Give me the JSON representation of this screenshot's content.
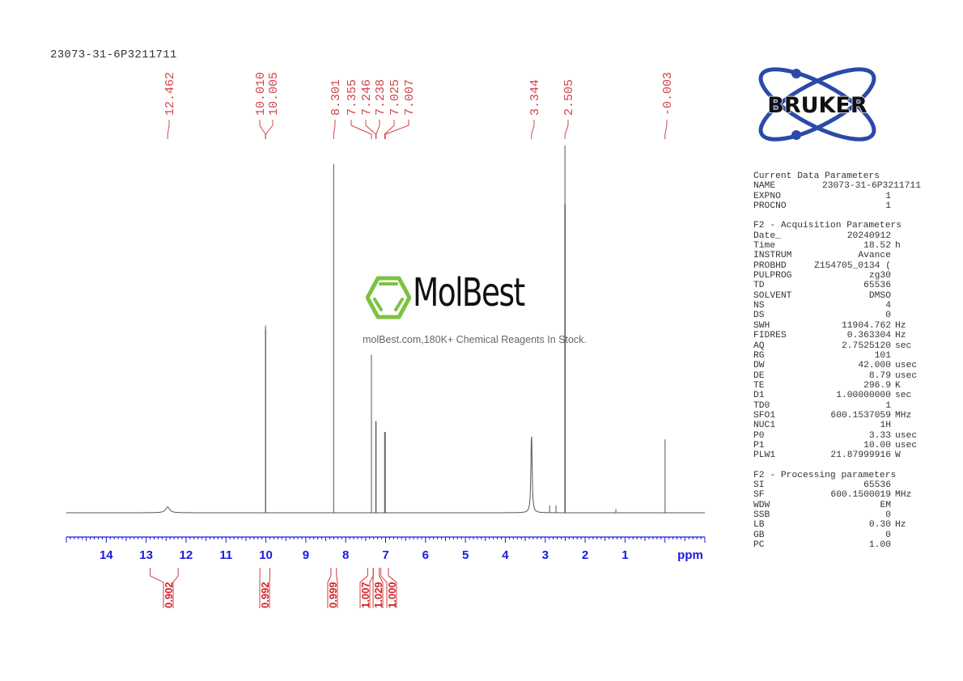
{
  "header": {
    "sample_name": "23073-31-6P3211711"
  },
  "logos": {
    "bruker": "BRUKER",
    "molbest": "MolBest",
    "molbest_tagline": "molBest.com,180K+ Chemical Reagents In Stock.",
    "molbest_color": "#7dc242",
    "bruker_color": "#2a4aa8"
  },
  "colors": {
    "peak_labels": "#d0454a",
    "axis": "#1a1adf",
    "spectrum": "#555555",
    "integrals": "#d0252a"
  },
  "chart_data": {
    "type": "line",
    "title": "",
    "xlabel": "ppm",
    "xlim": [
      15,
      -1
    ],
    "reversed_x": true,
    "grid": false,
    "x_ticks": [
      14,
      13,
      12,
      11,
      10,
      9,
      8,
      7,
      6,
      5,
      4,
      3,
      2,
      1
    ],
    "x_tick_labels": [
      "14",
      "13",
      "12",
      "11",
      "10",
      "9",
      "8",
      "7",
      "6",
      "5",
      "4",
      "3",
      "2",
      "1"
    ],
    "peak_labels": [
      "12.462",
      "10.010",
      "10.005",
      "8.301",
      "7.355",
      "7.246",
      "7.238",
      "7.025",
      "7.007",
      "3.344",
      "2.505",
      "-0.003"
    ],
    "peaks": [
      {
        "ppm": 12.462,
        "intensity": 1.6,
        "width": 0.12
      },
      {
        "ppm": 10.01,
        "intensity": 51
      },
      {
        "ppm": 10.005,
        "intensity": 50
      },
      {
        "ppm": 8.301,
        "intensity": 95
      },
      {
        "ppm": 7.355,
        "intensity": 43
      },
      {
        "ppm": 7.246,
        "intensity": 25
      },
      {
        "ppm": 7.238,
        "intensity": 25
      },
      {
        "ppm": 7.025,
        "intensity": 22
      },
      {
        "ppm": 7.007,
        "intensity": 22
      },
      {
        "ppm": 3.344,
        "intensity": 22,
        "width": 0.035
      },
      {
        "ppm": 2.505,
        "intensity": 100
      },
      {
        "ppm": 2.51,
        "intensity": 84
      },
      {
        "ppm": 2.5,
        "intensity": 84
      },
      {
        "ppm": 2.89,
        "intensity": 2
      },
      {
        "ppm": 2.73,
        "intensity": 2
      },
      {
        "ppm": 1.23,
        "intensity": 1
      },
      {
        "ppm": -0.003,
        "intensity": 20
      }
    ],
    "integrals": [
      {
        "from": 12.9,
        "to": 12.2,
        "value": "0.902"
      },
      {
        "from": 10.15,
        "to": 9.9,
        "value": "0.992"
      },
      {
        "from": 8.37,
        "to": 8.23,
        "value": "0.999"
      },
      {
        "from": 7.45,
        "to": 7.31,
        "value": "1.007"
      },
      {
        "from": 7.31,
        "to": 7.16,
        "value": "1.029"
      },
      {
        "from": 7.12,
        "to": 6.93,
        "value": "1.000"
      }
    ]
  },
  "parameters": {
    "current": {
      "heading": "Current Data Parameters",
      "rows": [
        {
          "name": "NAME",
          "value": "23073-31-6P3211711",
          "unit": ""
        },
        {
          "name": "EXPNO",
          "value": "1",
          "unit": ""
        },
        {
          "name": "PROCNO",
          "value": "1",
          "unit": ""
        }
      ]
    },
    "acquisition": {
      "heading": "F2 - Acquisition Parameters",
      "rows": [
        {
          "name": "Date_",
          "value": "20240912",
          "unit": ""
        },
        {
          "name": "Time",
          "value": "18.52",
          "unit": "h"
        },
        {
          "name": "INSTRUM",
          "value": "Avance",
          "unit": ""
        },
        {
          "name": "PROBHD",
          "value": "Z154705_0134 (",
          "unit": ""
        },
        {
          "name": "PULPROG",
          "value": "zg30",
          "unit": ""
        },
        {
          "name": "TD",
          "value": "65536",
          "unit": ""
        },
        {
          "name": "SOLVENT",
          "value": "DMSO",
          "unit": ""
        },
        {
          "name": "NS",
          "value": "4",
          "unit": ""
        },
        {
          "name": "DS",
          "value": "0",
          "unit": ""
        },
        {
          "name": "SWH",
          "value": "11904.762",
          "unit": "Hz"
        },
        {
          "name": "FIDRES",
          "value": "0.363304",
          "unit": "Hz"
        },
        {
          "name": "AQ",
          "value": "2.7525120",
          "unit": "sec"
        },
        {
          "name": "RG",
          "value": "101",
          "unit": ""
        },
        {
          "name": "DW",
          "value": "42.000",
          "unit": "usec"
        },
        {
          "name": "DE",
          "value": "8.79",
          "unit": "usec"
        },
        {
          "name": "TE",
          "value": "296.9",
          "unit": "K"
        },
        {
          "name": "D1",
          "value": "1.00000000",
          "unit": "sec"
        },
        {
          "name": "TD0",
          "value": "1",
          "unit": ""
        },
        {
          "name": "SFO1",
          "value": "600.1537059",
          "unit": "MHz"
        },
        {
          "name": "NUC1",
          "value": "1H",
          "unit": ""
        },
        {
          "name": "P0",
          "value": "3.33",
          "unit": "usec"
        },
        {
          "name": "P1",
          "value": "10.00",
          "unit": "usec"
        },
        {
          "name": "PLW1",
          "value": "21.87999916",
          "unit": "W"
        }
      ]
    },
    "processing": {
      "heading": "F2 - Processing parameters",
      "rows": [
        {
          "name": "SI",
          "value": "65536",
          "unit": ""
        },
        {
          "name": "SF",
          "value": "600.1500019",
          "unit": "MHz"
        },
        {
          "name": "WDW",
          "value": "EM",
          "unit": ""
        },
        {
          "name": "SSB",
          "value": "0",
          "unit": ""
        },
        {
          "name": "LB",
          "value": "0.30",
          "unit": "Hz"
        },
        {
          "name": "GB",
          "value": "0",
          "unit": ""
        },
        {
          "name": "PC",
          "value": "1.00",
          "unit": ""
        }
      ]
    }
  }
}
